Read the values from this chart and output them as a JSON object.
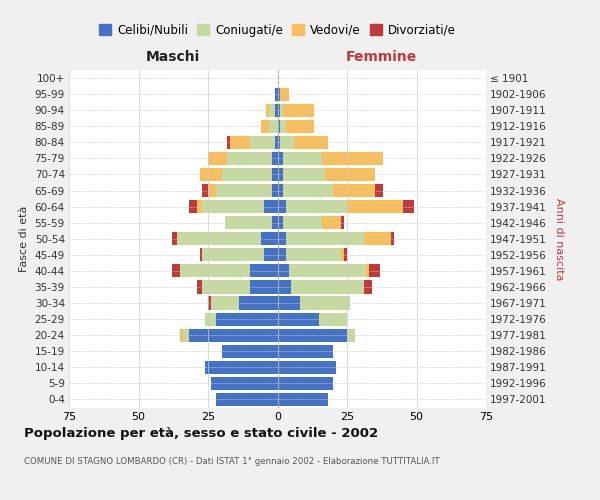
{
  "age_groups": [
    "0-4",
    "5-9",
    "10-14",
    "15-19",
    "20-24",
    "25-29",
    "30-34",
    "35-39",
    "40-44",
    "45-49",
    "50-54",
    "55-59",
    "60-64",
    "65-69",
    "70-74",
    "75-79",
    "80-84",
    "85-89",
    "90-94",
    "95-99",
    "100+"
  ],
  "birth_years": [
    "1997-2001",
    "1992-1996",
    "1987-1991",
    "1982-1986",
    "1977-1981",
    "1972-1976",
    "1967-1971",
    "1962-1966",
    "1957-1961",
    "1952-1956",
    "1947-1951",
    "1942-1946",
    "1937-1941",
    "1932-1936",
    "1927-1931",
    "1922-1926",
    "1917-1921",
    "1912-1916",
    "1907-1911",
    "1902-1906",
    "≤ 1901"
  ],
  "male": {
    "celibi": [
      22,
      24,
      26,
      20,
      32,
      22,
      14,
      10,
      10,
      5,
      6,
      2,
      5,
      2,
      2,
      2,
      1,
      0,
      1,
      1,
      0
    ],
    "coniugati": [
      0,
      0,
      0,
      0,
      2,
      4,
      10,
      17,
      25,
      22,
      30,
      17,
      22,
      20,
      18,
      16,
      9,
      3,
      2,
      0,
      0
    ],
    "vedovi": [
      0,
      0,
      0,
      0,
      1,
      0,
      0,
      0,
      0,
      0,
      0,
      0,
      2,
      3,
      8,
      7,
      7,
      3,
      1,
      0,
      0
    ],
    "divorziati": [
      0,
      0,
      0,
      0,
      0,
      0,
      1,
      2,
      3,
      1,
      2,
      0,
      3,
      2,
      0,
      0,
      1,
      0,
      0,
      0,
      0
    ]
  },
  "female": {
    "nubili": [
      18,
      20,
      21,
      20,
      25,
      15,
      8,
      5,
      4,
      3,
      3,
      2,
      3,
      2,
      2,
      2,
      1,
      1,
      1,
      1,
      0
    ],
    "coniugate": [
      0,
      0,
      0,
      0,
      3,
      10,
      18,
      26,
      28,
      20,
      28,
      14,
      22,
      18,
      15,
      14,
      5,
      2,
      1,
      0,
      0
    ],
    "vedove": [
      0,
      0,
      0,
      0,
      0,
      0,
      0,
      0,
      1,
      1,
      10,
      7,
      20,
      15,
      18,
      22,
      12,
      10,
      11,
      3,
      0
    ],
    "divorziate": [
      0,
      0,
      0,
      0,
      0,
      0,
      0,
      3,
      4,
      1,
      1,
      1,
      4,
      3,
      0,
      0,
      0,
      0,
      0,
      0,
      0
    ]
  },
  "colors": {
    "celibi_nubili": "#4472c4",
    "coniugati": "#c5d9a0",
    "vedovi": "#f8be5c",
    "divorziati": "#c0393b"
  },
  "xlim": 75,
  "title": "Popolazione per età, sesso e stato civile - 2002",
  "subtitle": "COMUNE DI STAGNO LOMBARDO (CR) - Dati ISTAT 1° gennaio 2002 - Elaborazione TUTTITALIA.IT",
  "ylabel_left": "Fasce di età",
  "ylabel_right": "Anni di nascita",
  "xlabel_left": "Maschi",
  "xlabel_right": "Femmine",
  "bg_color": "#f0f0f0",
  "plot_bg": "#ffffff"
}
